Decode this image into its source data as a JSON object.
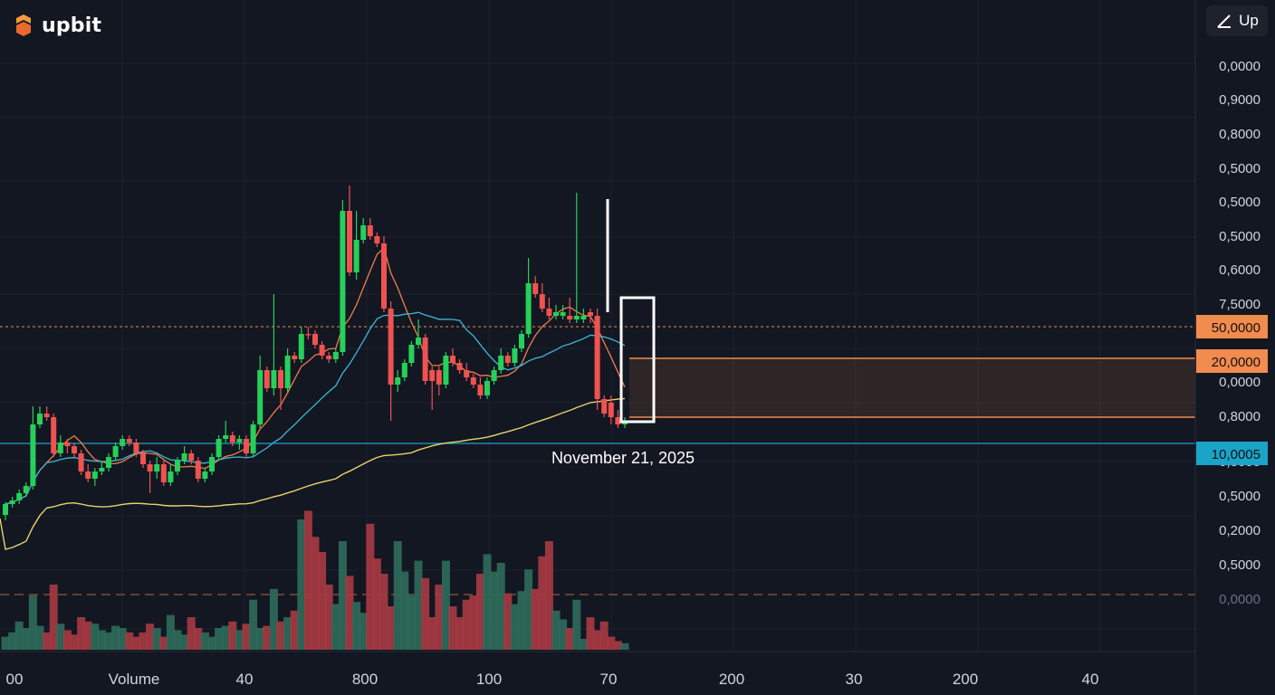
{
  "brand": {
    "name": "upbit"
  },
  "toolbar": {
    "up_label": "Up",
    "up_icon": "trend-line-icon"
  },
  "colors": {
    "background": "#131722",
    "up": "#26d05a",
    "down": "#ef5350",
    "volume_up": "#2f6b5b",
    "volume_down": "#a83a43",
    "ma_fast": "#f07e4b",
    "ma_mid": "#3bb8d6",
    "ma_slow": "#e7d36a",
    "tag_orange": "#f28b4e",
    "tag_blue": "#1ba3c8",
    "grid": "#1e2230"
  },
  "chart_data": {
    "type": "candlestick",
    "price_axis_labels": [
      "0,0000",
      "0,9000",
      "0,8000",
      "0,5000",
      "0,5000",
      "0,5000",
      "0,6000",
      "7,5000",
      "0,0000",
      "0,8000",
      "0,5000",
      "0,5000",
      "0,2000",
      "0,5000",
      "0,0000"
    ],
    "time_axis_labels": [
      "00",
      "Volume",
      "40",
      "800",
      "100",
      "70",
      "200",
      "30",
      "200",
      "40"
    ],
    "price_tags": [
      {
        "label": "50,0000",
        "color": "#f28b4e",
        "level": 0.0
      },
      {
        "label": "20,0000",
        "color": "#f28b4e",
        "level": -0.95
      },
      {
        "label": "10,0005",
        "color": "#1ba3c8",
        "level": -3.5
      }
    ],
    "crosshair_date": "November 21, 2025",
    "candles": [
      [
        -5.2,
        -4.9,
        -5.35,
        -4.85,
        1
      ],
      [
        -4.9,
        -4.8,
        -5.0,
        -4.7,
        1
      ],
      [
        -4.8,
        -4.6,
        -4.9,
        -4.5,
        1
      ],
      [
        -4.6,
        -4.4,
        -4.7,
        -4.3,
        1
      ],
      [
        -4.4,
        -2.7,
        -4.5,
        -2.2,
        1
      ],
      [
        -2.7,
        -2.4,
        -2.8,
        -2.2,
        1
      ],
      [
        -2.4,
        -2.5,
        -2.6,
        -2.2,
        0
      ],
      [
        -2.5,
        -3.5,
        -3.6,
        -2.4,
        0
      ],
      [
        -3.5,
        -3.2,
        -3.6,
        -3.0,
        1
      ],
      [
        -3.2,
        -3.3,
        -3.5,
        -3.1,
        0
      ],
      [
        -3.3,
        -3.5,
        -3.6,
        -3.2,
        0
      ],
      [
        -3.5,
        -4.0,
        -4.1,
        -3.4,
        0
      ],
      [
        -4.0,
        -4.2,
        -4.3,
        -3.8,
        0
      ],
      [
        -4.2,
        -4.0,
        -4.4,
        -3.9,
        1
      ],
      [
        -4.0,
        -3.9,
        -4.1,
        -3.7,
        1
      ],
      [
        -3.9,
        -3.6,
        -4.0,
        -3.5,
        1
      ],
      [
        -3.6,
        -3.3,
        -3.7,
        -3.2,
        1
      ],
      [
        -3.3,
        -3.1,
        -3.4,
        -3.0,
        1
      ],
      [
        -3.1,
        -3.2,
        -3.3,
        -3.0,
        0
      ],
      [
        -3.2,
        -3.5,
        -3.6,
        -3.1,
        0
      ],
      [
        -3.5,
        -3.8,
        -3.9,
        -3.4,
        0
      ],
      [
        -3.8,
        -4.0,
        -4.6,
        -3.7,
        0
      ],
      [
        -4.0,
        -3.8,
        -4.2,
        -3.6,
        1
      ],
      [
        -3.8,
        -4.3,
        -4.4,
        -3.7,
        0
      ],
      [
        -4.3,
        -4.0,
        -4.4,
        -3.8,
        1
      ],
      [
        -4.0,
        -3.7,
        -4.1,
        -3.6,
        1
      ],
      [
        -3.7,
        -3.5,
        -3.8,
        -3.3,
        1
      ],
      [
        -3.5,
        -3.7,
        -3.8,
        -3.4,
        0
      ],
      [
        -3.7,
        -4.2,
        -4.3,
        -3.6,
        0
      ],
      [
        -4.2,
        -4.0,
        -4.3,
        -3.9,
        1
      ],
      [
        -4.0,
        -3.6,
        -4.1,
        -3.5,
        1
      ],
      [
        -3.6,
        -3.1,
        -3.7,
        -3.0,
        1
      ],
      [
        -3.1,
        -3.0,
        -3.2,
        -2.6,
        1
      ],
      [
        -3.0,
        -3.2,
        -3.3,
        -2.9,
        0
      ],
      [
        -3.2,
        -3.1,
        -3.4,
        -3.0,
        1
      ],
      [
        -3.1,
        -3.5,
        -3.6,
        -3.0,
        0
      ],
      [
        -3.5,
        -2.7,
        -3.6,
        -2.6,
        1
      ],
      [
        -2.7,
        -1.2,
        -2.8,
        -0.8,
        1
      ],
      [
        -1.2,
        -1.7,
        -1.8,
        -1.1,
        0
      ],
      [
        -1.7,
        -1.2,
        -1.9,
        0.9,
        1
      ],
      [
        -1.2,
        -1.7,
        -2.3,
        -1.1,
        0
      ],
      [
        -1.7,
        -0.8,
        -1.8,
        -0.6,
        1
      ],
      [
        -0.8,
        -0.9,
        -1.0,
        -0.7,
        0
      ],
      [
        -0.9,
        -0.2,
        -1.0,
        0.0,
        1
      ],
      [
        -0.2,
        -0.2,
        -0.35,
        0.0,
        0
      ],
      [
        -0.2,
        -0.5,
        -0.6,
        -0.1,
        0
      ],
      [
        -0.5,
        -0.8,
        -0.9,
        -0.4,
        0
      ],
      [
        -0.8,
        -0.9,
        -1.0,
        -0.7,
        0
      ],
      [
        -0.9,
        -0.7,
        -1.0,
        -0.6,
        1
      ],
      [
        -0.7,
        3.2,
        -0.8,
        3.5,
        1
      ],
      [
        3.2,
        1.5,
        1.4,
        3.9,
        0
      ],
      [
        1.5,
        2.4,
        1.3,
        3.2,
        1
      ],
      [
        2.4,
        2.8,
        2.3,
        3.0,
        1
      ],
      [
        2.8,
        2.5,
        2.4,
        3.0,
        0
      ],
      [
        2.5,
        2.3,
        2.2,
        2.6,
        0
      ],
      [
        2.3,
        0.5,
        0.4,
        2.5,
        0
      ],
      [
        0.5,
        -1.6,
        -2.6,
        0.7,
        0
      ],
      [
        -1.6,
        -1.4,
        -1.8,
        -1.2,
        1
      ],
      [
        -1.4,
        -1.0,
        -1.5,
        -0.9,
        1
      ],
      [
        -1.0,
        -0.5,
        -1.1,
        -0.4,
        1
      ],
      [
        -0.5,
        -0.3,
        -0.6,
        0.2,
        1
      ],
      [
        -0.3,
        -1.5,
        -1.6,
        -0.2,
        0
      ],
      [
        -1.5,
        -1.2,
        -2.3,
        -1.1,
        0
      ],
      [
        -1.2,
        -1.6,
        -1.9,
        -1.1,
        0
      ],
      [
        -1.6,
        -0.8,
        -1.7,
        -0.7,
        1
      ],
      [
        -0.8,
        -1.0,
        -1.1,
        -0.6,
        0
      ],
      [
        -1.0,
        -1.2,
        -1.3,
        -0.9,
        0
      ],
      [
        -1.2,
        -1.4,
        -1.5,
        -1.0,
        0
      ],
      [
        -1.4,
        -1.6,
        -1.7,
        -1.3,
        0
      ],
      [
        -1.6,
        -1.9,
        -2.0,
        -1.4,
        0
      ],
      [
        -1.9,
        -1.5,
        -2.0,
        -1.4,
        1
      ],
      [
        -1.5,
        -1.2,
        -1.6,
        -1.1,
        1
      ],
      [
        -1.2,
        -0.8,
        -1.3,
        -0.6,
        1
      ],
      [
        -0.8,
        -1.0,
        -1.1,
        -0.7,
        0
      ],
      [
        -1.0,
        -0.6,
        -1.1,
        -0.5,
        1
      ],
      [
        -0.6,
        -0.2,
        -0.7,
        -0.1,
        1
      ],
      [
        -0.2,
        1.2,
        -0.3,
        1.9,
        1
      ],
      [
        1.2,
        0.9,
        0.8,
        1.4,
        0
      ],
      [
        0.9,
        0.5,
        0.4,
        1.2,
        0
      ],
      [
        0.5,
        0.3,
        0.2,
        0.8,
        0
      ],
      [
        0.3,
        0.4,
        0.2,
        0.6,
        1
      ],
      [
        0.4,
        0.3,
        0.2,
        0.6,
        1
      ],
      [
        0.3,
        0.2,
        0.1,
        0.8,
        0
      ],
      [
        0.2,
        0.3,
        0.1,
        3.7,
        1
      ],
      [
        0.3,
        0.2,
        0.1,
        0.5,
        1
      ],
      [
        0.4,
        0.3,
        0.1,
        0.5,
        0
      ],
      [
        0.3,
        -2.0,
        -2.3,
        0.5,
        0
      ],
      [
        -2.0,
        -2.4,
        -2.5,
        -1.9,
        0
      ],
      [
        -2.1,
        -2.5,
        -2.7,
        -1.9,
        0
      ],
      [
        -2.5,
        -2.7,
        -2.8,
        -2.3,
        0
      ],
      [
        -2.7,
        -2.6,
        -2.8,
        -2.5,
        1
      ]
    ],
    "volumes": [
      0.6,
      0.8,
      1.3,
      1.0,
      2.5,
      1.1,
      0.8,
      3.0,
      1.2,
      0.9,
      0.7,
      1.5,
      1.3,
      1.2,
      0.9,
      0.8,
      1.1,
      1.0,
      0.8,
      0.6,
      0.8,
      1.2,
      1.0,
      0.6,
      1.6,
      0.9,
      0.7,
      1.5,
      1.0,
      0.8,
      0.6,
      1.0,
      1.1,
      1.3,
      0.9,
      1.2,
      2.3,
      1.0,
      1.1,
      2.8,
      1.3,
      1.5,
      1.8,
      6.0,
      6.4,
      5.2,
      4.5,
      3.0,
      2.1,
      5.0,
      3.4,
      2.2,
      1.7,
      5.8,
      4.2,
      3.5,
      2.0,
      5.0,
      3.6,
      2.5,
      4.1,
      3.3,
      1.5,
      3.0,
      4.1,
      2.0,
      1.5,
      2.3,
      2.5,
      3.5,
      4.4,
      3.6,
      4.0,
      2.6,
      2.1,
      2.7,
      3.7,
      2.8,
      4.3,
      5.0,
      1.8,
      1.4,
      1.0,
      2.3,
      0.5,
      1.5,
      0.9,
      1.3,
      0.6,
      0.4,
      0.3
    ]
  }
}
